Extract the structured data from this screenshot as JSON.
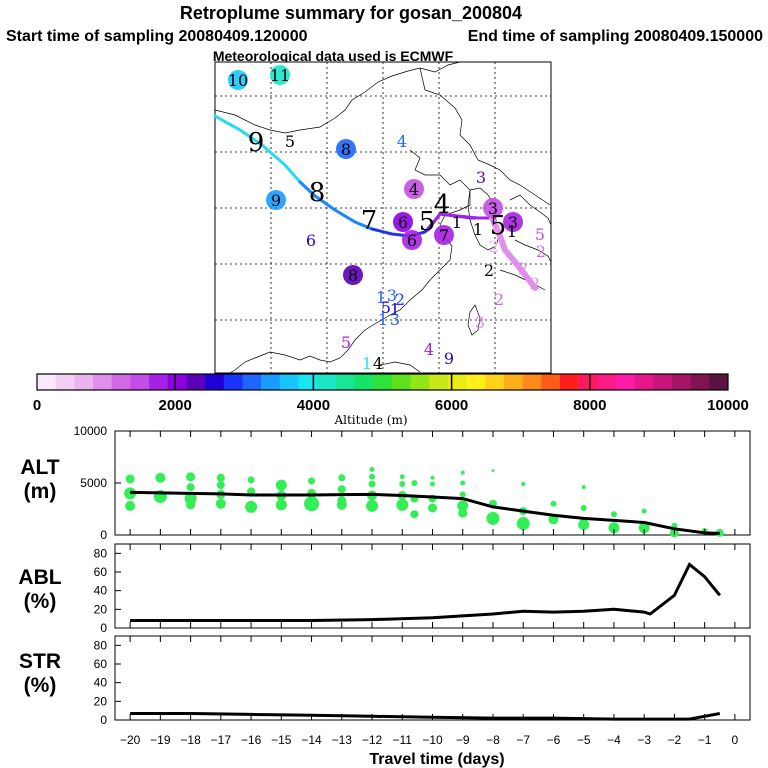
{
  "header": {
    "title": "Retroplume summary for gosan_200804",
    "start_label": "Start time of sampling 20080409.120000",
    "end_label": "End time of sampling 20080409.150000",
    "met_label": "Meteorological data used is ECMWF"
  },
  "colorbar": {
    "label": "Altitude (m)",
    "ticks": [
      "0",
      "2000",
      "4000",
      "6000",
      "8000",
      "10000"
    ],
    "colors": [
      "#fbe8fb",
      "#f3cff3",
      "#eab5ef",
      "#e08fec",
      "#d26ae8",
      "#c44de6",
      "#a621e3",
      "#8d00de",
      "#5a00b8",
      "#1e00d6",
      "#1a33ff",
      "#1e66ff",
      "#1a9bff",
      "#17c6ff",
      "#1ae6f0",
      "#1ae6c8",
      "#18e694",
      "#17e36a",
      "#2ee23a",
      "#5ee21a",
      "#95e617",
      "#c8e81a",
      "#eaea17",
      "#fff01a",
      "#ffd21a",
      "#ffae1a",
      "#ff8a1a",
      "#ff5c1a",
      "#ff1f1f",
      "#ff1a60",
      "#ff1a8a",
      "#ff1aa8",
      "#e6178c",
      "#c8157a",
      "#a51466",
      "#801450",
      "#5a1240"
    ]
  },
  "map": {
    "labels": [
      {
        "t": "10",
        "x": 238,
        "y": 86,
        "c": "#17c6ff",
        "bg": 1
      },
      {
        "t": "11",
        "x": 280,
        "y": 81,
        "c": "#1ae6c8",
        "bg": 1
      },
      {
        "t": "9",
        "x": 256,
        "y": 151,
        "c": "#000",
        "big": 1
      },
      {
        "t": "5",
        "x": 290,
        "y": 147,
        "c": "#000"
      },
      {
        "t": "8",
        "x": 346,
        "y": 155,
        "c": "#1e66ff",
        "bg": 1
      },
      {
        "t": "4",
        "x": 402,
        "y": 147,
        "c": "#1e66ff"
      },
      {
        "t": "3",
        "x": 481,
        "y": 183,
        "c": "#5a00b8"
      },
      {
        "t": "4",
        "x": 414,
        "y": 195,
        "c": "#c44de6",
        "bg": 1
      },
      {
        "t": "9",
        "x": 276,
        "y": 206,
        "c": "#1a9bff",
        "bg": 1
      },
      {
        "t": "8",
        "x": 317,
        "y": 201,
        "c": "#000",
        "big": 1
      },
      {
        "t": "7",
        "x": 369,
        "y": 229,
        "c": "#000",
        "big": 1
      },
      {
        "t": "6",
        "x": 311,
        "y": 246,
        "c": "#1e00d6"
      },
      {
        "t": "6",
        "x": 403,
        "y": 228,
        "c": "#8d00de",
        "bg": 1
      },
      {
        "t": "5",
        "x": 427,
        "y": 230,
        "c": "#000",
        "big": 1
      },
      {
        "t": "6",
        "x": 412,
        "y": 246,
        "c": "#a621e3",
        "bg": 1
      },
      {
        "t": "7",
        "x": 444,
        "y": 241,
        "c": "#a621e3",
        "bg": 1
      },
      {
        "t": "4",
        "x": 442,
        "y": 213,
        "c": "#000",
        "big": 1
      },
      {
        "t": "1",
        "x": 457,
        "y": 228,
        "c": "#000"
      },
      {
        "t": "1",
        "x": 478,
        "y": 235,
        "c": "#000"
      },
      {
        "t": "3",
        "x": 493,
        "y": 214,
        "c": "#c44de6",
        "bg": 1
      },
      {
        "t": "5",
        "x": 498,
        "y": 234,
        "c": "#000",
        "big": 1
      },
      {
        "t": "3",
        "x": 513,
        "y": 228,
        "c": "#a621e3",
        "bg": 1
      },
      {
        "t": "1",
        "x": 512,
        "y": 237,
        "c": "#000"
      },
      {
        "t": "5",
        "x": 540,
        "y": 240,
        "c": "#c44de6"
      },
      {
        "t": "2",
        "x": 494,
        "y": 252,
        "c": "#eab5ef"
      },
      {
        "t": "2",
        "x": 541,
        "y": 257,
        "c": "#d26ae8"
      },
      {
        "t": "2",
        "x": 489,
        "y": 276,
        "c": "#000"
      },
      {
        "t": "2",
        "x": 523,
        "y": 274,
        "c": "#e08fec"
      },
      {
        "t": "2",
        "x": 535,
        "y": 289,
        "c": "#e08fec"
      },
      {
        "t": "8",
        "x": 353,
        "y": 281,
        "c": "#5a00b8",
        "bg": 1
      },
      {
        "t": "2",
        "x": 499,
        "y": 305,
        "c": "#d26ae8"
      },
      {
        "t": "1",
        "x": 381,
        "y": 303,
        "c": "#1e66ff"
      },
      {
        "t": "3",
        "x": 392,
        "y": 301,
        "c": "#1e66ff"
      },
      {
        "t": "2",
        "x": 400,
        "y": 305,
        "c": "#1a33ff"
      },
      {
        "t": "5",
        "x": 386,
        "y": 313,
        "c": "#1e00d6"
      },
      {
        "t": "1",
        "x": 395,
        "y": 315,
        "c": "#1e00d6"
      },
      {
        "t": "1",
        "x": 383,
        "y": 325,
        "c": "#1e66ff"
      },
      {
        "t": "3",
        "x": 395,
        "y": 325,
        "c": "#1e66ff"
      },
      {
        "t": "3",
        "x": 480,
        "y": 328,
        "c": "#e08fec"
      },
      {
        "t": "5",
        "x": 346,
        "y": 348,
        "c": "#a621e3"
      },
      {
        "t": "4",
        "x": 429,
        "y": 355,
        "c": "#a621e3"
      },
      {
        "t": "9",
        "x": 449,
        "y": 364,
        "c": "#1e00d6"
      },
      {
        "t": "1",
        "x": 367,
        "y": 369,
        "c": "#1ae6f0"
      },
      {
        "t": "4",
        "x": 378,
        "y": 369,
        "c": "#000"
      }
    ]
  },
  "chart_data": [
    {
      "type": "line",
      "panel": "ALT",
      "ylabel": "ALT (m)",
      "xlabel": "Travel time (days)",
      "x": [
        -20,
        -19,
        -18,
        -17,
        -16,
        -15,
        -14,
        -13,
        -12,
        -11,
        -10,
        -9,
        -8,
        -7,
        -6,
        -5,
        -4,
        -3,
        -2,
        -1,
        -0.5
      ],
      "values": [
        4100,
        4050,
        4000,
        3950,
        3850,
        3850,
        3850,
        3880,
        3900,
        3800,
        3650,
        3500,
        2700,
        2300,
        1900,
        1600,
        1400,
        1200,
        600,
        200,
        150
      ],
      "ylim": [
        0,
        10000
      ],
      "yticks": [
        "0",
        "5000",
        "10000"
      ],
      "scatter_points": [
        {
          "x": -20,
          "y": 5400,
          "s": 7
        },
        {
          "x": -20,
          "y": 4000,
          "s": 10
        },
        {
          "x": -20,
          "y": 2800,
          "s": 8
        },
        {
          "x": -19,
          "y": 5500,
          "s": 8
        },
        {
          "x": -19,
          "y": 3700,
          "s": 11
        },
        {
          "x": -18,
          "y": 5600,
          "s": 7
        },
        {
          "x": -18,
          "y": 4600,
          "s": 6
        },
        {
          "x": -18,
          "y": 3500,
          "s": 10
        },
        {
          "x": -18,
          "y": 2900,
          "s": 7
        },
        {
          "x": -17,
          "y": 5500,
          "s": 6
        },
        {
          "x": -17,
          "y": 4800,
          "s": 6
        },
        {
          "x": -17,
          "y": 3900,
          "s": 7
        },
        {
          "x": -17,
          "y": 3000,
          "s": 8
        },
        {
          "x": -16,
          "y": 5300,
          "s": 5
        },
        {
          "x": -16,
          "y": 4200,
          "s": 6
        },
        {
          "x": -16,
          "y": 2700,
          "s": 10
        },
        {
          "x": -15,
          "y": 4800,
          "s": 9
        },
        {
          "x": -15,
          "y": 3800,
          "s": 8
        },
        {
          "x": -15,
          "y": 2900,
          "s": 9
        },
        {
          "x": -14,
          "y": 5200,
          "s": 5
        },
        {
          "x": -14,
          "y": 4000,
          "s": 7
        },
        {
          "x": -14,
          "y": 3000,
          "s": 13
        },
        {
          "x": -13,
          "y": 5500,
          "s": 5
        },
        {
          "x": -13,
          "y": 4400,
          "s": 6
        },
        {
          "x": -13,
          "y": 3300,
          "s": 7
        },
        {
          "x": -13,
          "y": 2900,
          "s": 8
        },
        {
          "x": -12,
          "y": 6300,
          "s": 3
        },
        {
          "x": -12,
          "y": 5600,
          "s": 4
        },
        {
          "x": -12,
          "y": 4900,
          "s": 5
        },
        {
          "x": -12,
          "y": 3800,
          "s": 8
        },
        {
          "x": -12,
          "y": 2800,
          "s": 10
        },
        {
          "x": -11,
          "y": 5600,
          "s": 3
        },
        {
          "x": -11,
          "y": 4900,
          "s": 4
        },
        {
          "x": -11,
          "y": 3800,
          "s": 7
        },
        {
          "x": -11,
          "y": 2900,
          "s": 10
        },
        {
          "x": -10.6,
          "y": 5000,
          "s": 4
        },
        {
          "x": -10.6,
          "y": 3500,
          "s": 6
        },
        {
          "x": -10.6,
          "y": 2000,
          "s": 6
        },
        {
          "x": -10,
          "y": 5500,
          "s": 2
        },
        {
          "x": -10,
          "y": 4900,
          "s": 3
        },
        {
          "x": -10,
          "y": 3500,
          "s": 6
        },
        {
          "x": -10,
          "y": 2600,
          "s": 7
        },
        {
          "x": -9,
          "y": 6000,
          "s": 2
        },
        {
          "x": -9,
          "y": 5000,
          "s": 3
        },
        {
          "x": -9,
          "y": 3900,
          "s": 4
        },
        {
          "x": -9,
          "y": 2800,
          "s": 9
        },
        {
          "x": -9,
          "y": 2100,
          "s": 7
        },
        {
          "x": -8,
          "y": 6200,
          "s": 1
        },
        {
          "x": -8,
          "y": 3000,
          "s": 6
        },
        {
          "x": -8,
          "y": 1600,
          "s": 11
        },
        {
          "x": -7,
          "y": 4900,
          "s": 2
        },
        {
          "x": -7,
          "y": 2300,
          "s": 6
        },
        {
          "x": -7,
          "y": 1100,
          "s": 11
        },
        {
          "x": -6,
          "y": 3000,
          "s": 4
        },
        {
          "x": -6,
          "y": 1500,
          "s": 8
        },
        {
          "x": -5,
          "y": 4600,
          "s": 2
        },
        {
          "x": -5,
          "y": 2600,
          "s": 4
        },
        {
          "x": -5,
          "y": 1000,
          "s": 9
        },
        {
          "x": -4,
          "y": 2000,
          "s": 4
        },
        {
          "x": -4,
          "y": 700,
          "s": 9
        },
        {
          "x": -3,
          "y": 2300,
          "s": 3
        },
        {
          "x": -3,
          "y": 700,
          "s": 9
        },
        {
          "x": -2,
          "y": 900,
          "s": 4
        },
        {
          "x": -2,
          "y": 200,
          "s": 7
        },
        {
          "x": -1,
          "y": 400,
          "s": 4
        },
        {
          "x": -0.5,
          "y": 200,
          "s": 6
        }
      ]
    },
    {
      "type": "line",
      "panel": "ABL",
      "ylabel": "ABL (%)",
      "xlabel": "Travel time (days)",
      "x": [
        -20,
        -18,
        -16,
        -14,
        -12,
        -10,
        -9,
        -8,
        -7,
        -6,
        -5,
        -4,
        -3,
        -2.8,
        -2,
        -1.5,
        -1,
        -0.5
      ],
      "values": [
        8,
        8,
        8,
        8,
        9,
        11,
        13,
        15,
        18,
        17,
        18,
        20,
        17,
        15,
        35,
        68,
        55,
        35
      ],
      "ylim": [
        0,
        90
      ],
      "yticks": [
        "0",
        "20",
        "40",
        "60",
        "80"
      ]
    },
    {
      "type": "line",
      "panel": "STR",
      "ylabel": "STR (%)",
      "xlabel": "Travel time (days)",
      "x": [
        -20,
        -18,
        -16,
        -14,
        -12,
        -10,
        -8,
        -6,
        -4,
        -2,
        -1.5,
        -1,
        -0.5
      ],
      "values": [
        7,
        7,
        6,
        5,
        4,
        3,
        2,
        2,
        1,
        1,
        1,
        4,
        7
      ],
      "ylim": [
        0,
        90
      ],
      "yticks": [
        "0",
        "20",
        "40",
        "60",
        "80"
      ]
    }
  ],
  "x_axis": {
    "ticks": [
      "−20",
      "−19",
      "−18",
      "−17",
      "−16",
      "−15",
      "−14",
      "−13",
      "−12",
      "−11",
      "−10",
      "−9",
      "−8",
      "−7",
      "−6",
      "−5",
      "−4",
      "−3",
      "−2",
      "−1",
      "0"
    ],
    "title": "Travel time (days)"
  },
  "panels": {
    "alt_label_1": "ALT",
    "alt_label_2": "(m)",
    "abl_label_1": "ABL",
    "abl_label_2": "(%)",
    "str_label_1": "STR",
    "str_label_2": "(%)"
  },
  "colors": {
    "line": "#000000",
    "scatter": "#33ee55",
    "grid": "#000000"
  }
}
